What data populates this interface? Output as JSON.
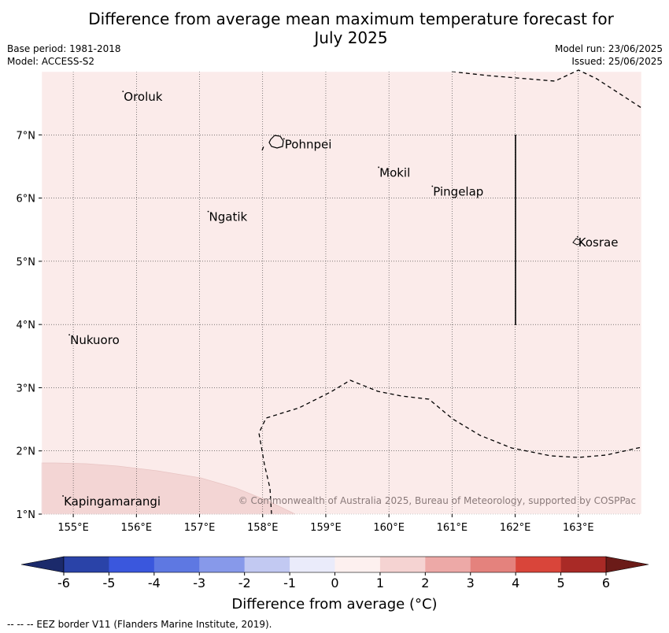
{
  "title_line1": "Difference from average mean maximum temperature forecast for",
  "title_line2": "July 2025",
  "base_period": "Base period: 1981-2018",
  "model": "Model: ACCESS-S2",
  "model_run": "Model run: 23/06/2025",
  "issued": "Issued: 25/06/2025",
  "copyright": "© Commonwealth of Australia 2025, Bureau of Meteorology, supported by COSPPac",
  "map": {
    "lon_range": [
      154.5,
      164.0
    ],
    "lat_range": [
      1.0,
      8.0
    ],
    "grid": true,
    "lon_ticks": [
      "155°E",
      "156°E",
      "157°E",
      "158°E",
      "159°E",
      "160°E",
      "161°E",
      "162°E",
      "163°E"
    ],
    "lat_ticks": [
      "1°N",
      "2°N",
      "3°N",
      "4°N",
      "5°N",
      "6°N",
      "7°N"
    ],
    "background_fill": "#fbebea",
    "anomaly_fill_1_2": "#f3d5d4",
    "places": [
      {
        "name": "Oroluk",
        "lon": 155.8,
        "lat": 7.6
      },
      {
        "name": "Pohnpei",
        "lon": 158.35,
        "lat": 6.85
      },
      {
        "name": "Mokil",
        "lon": 159.85,
        "lat": 6.4
      },
      {
        "name": "Pingelap",
        "lon": 160.7,
        "lat": 6.1
      },
      {
        "name": "Ngatik",
        "lon": 157.15,
        "lat": 5.7
      },
      {
        "name": "Kosrae",
        "lon": 163.0,
        "lat": 5.3
      },
      {
        "name": "Nukuoro",
        "lon": 154.95,
        "lat": 3.75
      },
      {
        "name": "Kapingamarangi",
        "lon": 154.85,
        "lat": 1.2
      }
    ]
  },
  "colorbar": {
    "ticks": [
      "-6",
      "-5",
      "-4",
      "-3",
      "-2",
      "-1",
      "0",
      "1",
      "2",
      "3",
      "4",
      "5",
      "6"
    ],
    "colors": [
      "#2a43a8",
      "#3a57dd",
      "#5e78e2",
      "#8799ea",
      "#c2c9f2",
      "#eaebfa",
      "#fdf0ef",
      "#f5d3d2",
      "#eda9a7",
      "#e4827d",
      "#d9453a",
      "#a92a26"
    ],
    "low_extend_color": "#1b2a6b",
    "high_extend_color": "#6b1b18",
    "label": "Difference from average (°C)"
  },
  "footnote": "--  --  -- EEZ border V11 (Flanders Marine Institute, 2019)."
}
